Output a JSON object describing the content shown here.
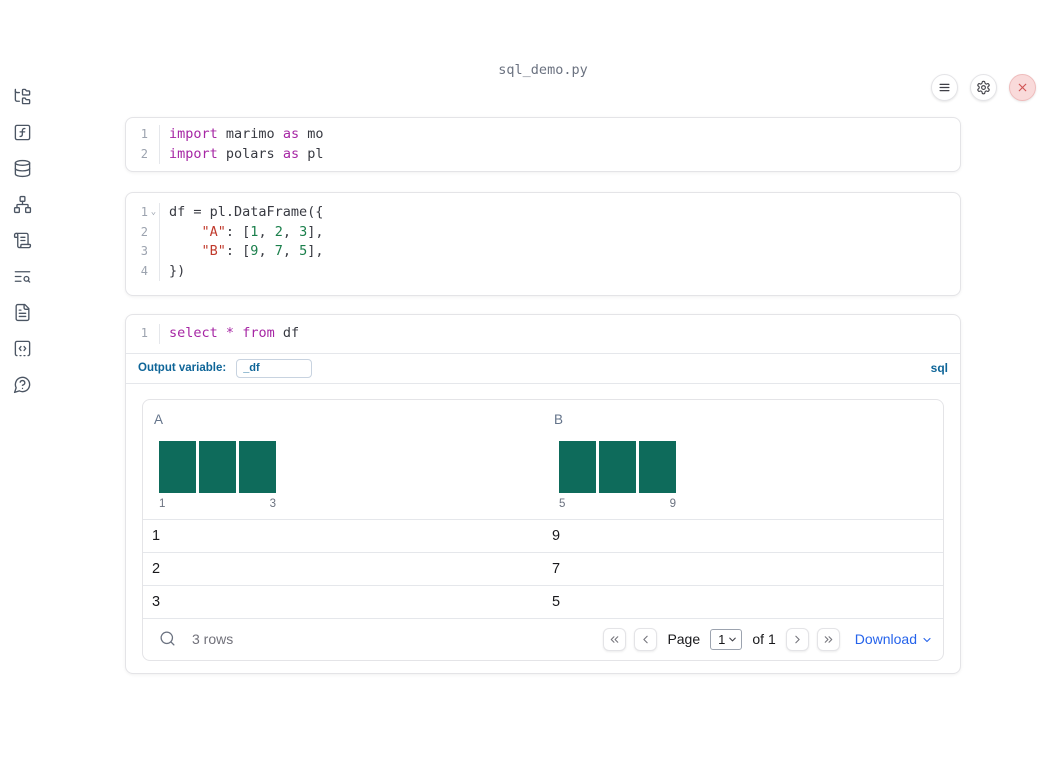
{
  "notebook": {
    "filename": "sql_demo.py"
  },
  "topbar": {
    "controls": [
      {
        "name": "menu",
        "icon": "hamburger-icon"
      },
      {
        "name": "settings",
        "icon": "gear-icon"
      },
      {
        "name": "shutdown",
        "icon": "close-icon"
      }
    ]
  },
  "sidebar": {
    "items": [
      {
        "name": "file-explorer",
        "icon": "folder-tree-icon"
      },
      {
        "name": "variables",
        "icon": "function-square-icon"
      },
      {
        "name": "data-sources",
        "icon": "database-icon"
      },
      {
        "name": "dependency-graph",
        "icon": "network-icon"
      },
      {
        "name": "logs",
        "icon": "scroll-text-icon"
      },
      {
        "name": "scratchpad",
        "icon": "text-search-icon"
      },
      {
        "name": "documentation",
        "icon": "file-text-icon"
      },
      {
        "name": "snippets",
        "icon": "code-square-icon"
      },
      {
        "name": "help",
        "icon": "help-circle-icon"
      }
    ]
  },
  "colors": {
    "keyword": "#a626a4",
    "string": "#c0392b",
    "number": "#1a7f4b",
    "plain_code": "#383a42",
    "histogram_bar": "#0e6b5b",
    "sql_accent_blue": "#0e6598",
    "download_link_blue": "#2563eb"
  },
  "cells": [
    {
      "name": "imports-cell",
      "lines": [
        {
          "num": "1",
          "tokens": [
            [
              "kw",
              "import"
            ],
            [
              "pl",
              " marimo "
            ],
            [
              "kw",
              "as"
            ],
            [
              "pl",
              " mo"
            ]
          ]
        },
        {
          "num": "2",
          "tokens": [
            [
              "kw",
              "import"
            ],
            [
              "pl",
              " polars "
            ],
            [
              "kw",
              "as"
            ],
            [
              "pl",
              " pl"
            ]
          ]
        }
      ]
    },
    {
      "name": "dataframe-cell",
      "lines": [
        {
          "num": "1",
          "fold": true,
          "tokens": [
            [
              "pl",
              "df = pl.DataFrame({"
            ]
          ]
        },
        {
          "num": "2",
          "tokens": [
            [
              "pl",
              "    "
            ],
            [
              "str",
              "\"A\""
            ],
            [
              "pl",
              ": ["
            ],
            [
              "num",
              "1"
            ],
            [
              "pl",
              ", "
            ],
            [
              "num",
              "2"
            ],
            [
              "pl",
              ", "
            ],
            [
              "num",
              "3"
            ],
            [
              "pl",
              "],"
            ]
          ]
        },
        {
          "num": "3",
          "tokens": [
            [
              "pl",
              "    "
            ],
            [
              "str",
              "\"B\""
            ],
            [
              "pl",
              ": ["
            ],
            [
              "num",
              "9"
            ],
            [
              "pl",
              ", "
            ],
            [
              "num",
              "7"
            ],
            [
              "pl",
              ", "
            ],
            [
              "num",
              "5"
            ],
            [
              "pl",
              "],"
            ]
          ]
        },
        {
          "num": "4",
          "tokens": [
            [
              "pl",
              "})"
            ]
          ]
        }
      ]
    },
    {
      "name": "sql-cell",
      "lines": [
        {
          "num": "1",
          "tokens": [
            [
              "kw",
              "select"
            ],
            [
              "pl",
              " "
            ],
            [
              "kw",
              "*"
            ],
            [
              "pl",
              " "
            ],
            [
              "kw",
              "from"
            ],
            [
              "pl",
              " df"
            ]
          ]
        }
      ],
      "output_variable_label": "Output variable:",
      "output_variable_value": "_df",
      "language_badge": "sql"
    }
  ],
  "table": {
    "columns": [
      {
        "header": "A",
        "histogram": {
          "type": "bar",
          "bars": [
            1,
            1,
            1
          ],
          "min_label": "1",
          "max_label": "3"
        }
      },
      {
        "header": "B",
        "histogram": {
          "type": "bar",
          "bars": [
            1,
            1,
            1
          ],
          "min_label": "5",
          "max_label": "9"
        }
      }
    ],
    "rows": [
      [
        "1",
        "9"
      ],
      [
        "2",
        "7"
      ],
      [
        "3",
        "5"
      ]
    ],
    "footer": {
      "row_count": "3 rows",
      "page_label": "Page",
      "page_value": "1",
      "of_label": "of 1",
      "download_label": "Download"
    }
  }
}
